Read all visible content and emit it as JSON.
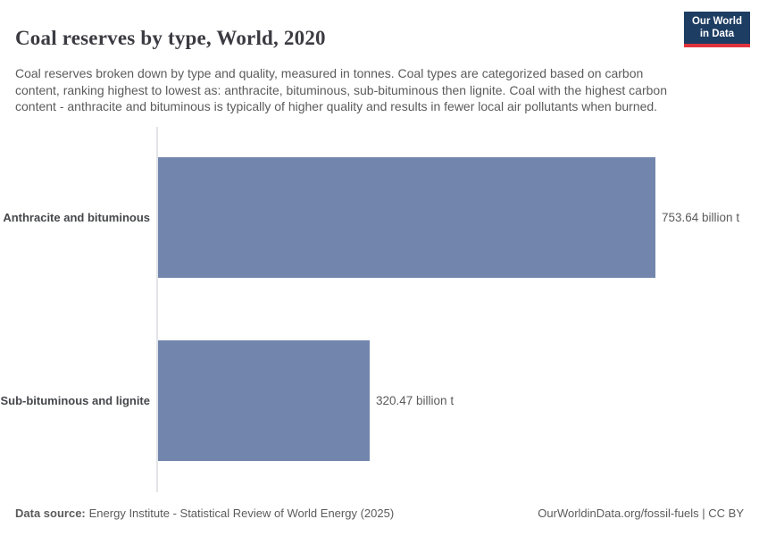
{
  "header": {
    "title": "Coal reserves by type, World, 2020",
    "subtitle": "Coal reserves broken down by type and quality, measured in tonnes. Coal types are categorized based on carbon content, ranking highest to lowest as: anthracite, bituminous, sub-bituminous then lignite. Coal with the highest carbon content - anthracite and bituminous is typically of higher quality and results in fewer local air pollutants when burned.",
    "logo": {
      "line1": "Our World",
      "line2": "in Data",
      "bg_color": "#1d3d63",
      "accent_color": "#e0333c"
    }
  },
  "chart_data": {
    "type": "bar",
    "orientation": "horizontal",
    "categories": [
      "Anthracite and bituminous",
      "Sub-bituminous and lignite"
    ],
    "values": [
      753.64,
      320.47
    ],
    "value_labels": [
      "753.64 billion t",
      "320.47 billion t"
    ],
    "unit": "billion t",
    "title": "Coal reserves by type, World, 2020",
    "xlabel": "",
    "ylabel": "",
    "xlim": [
      0,
      753.64
    ],
    "grid": false,
    "legend": "none",
    "bar_color": "#7286ad"
  },
  "footer": {
    "source_prefix": "Data source:",
    "source": "Energy Institute - Statistical Review of World Energy (2025)",
    "link": "OurWorldinData.org/fossil-fuels | CC BY"
  }
}
